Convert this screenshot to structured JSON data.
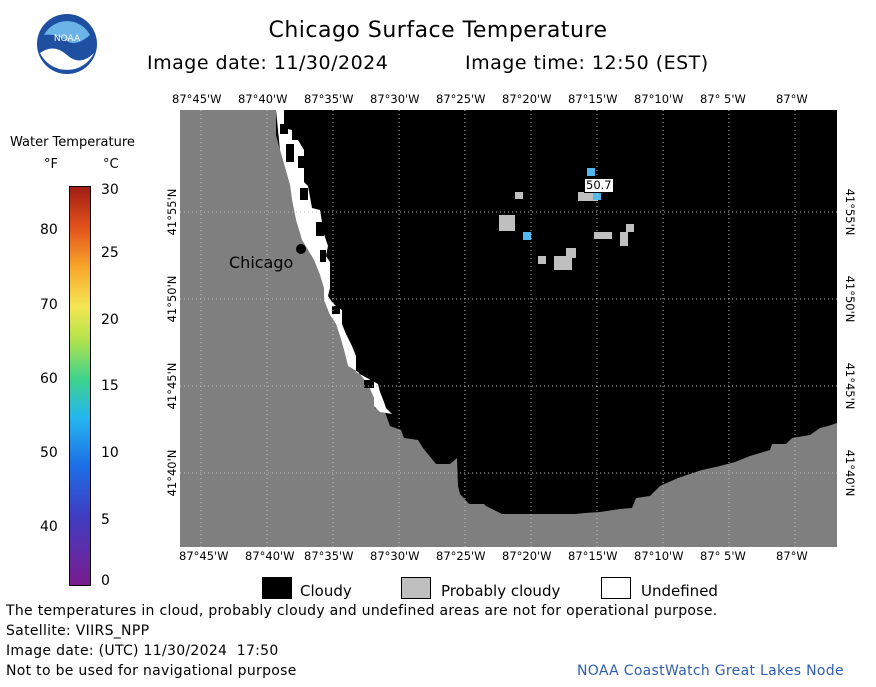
{
  "header": {
    "logo_text": "NOAA",
    "title": "Chicago Surface Temperature",
    "date_label": "Image date: 11/30/2024",
    "time_label": "Image time: 12:50 (EST)"
  },
  "colorbar": {
    "title": "Water Temperature",
    "unit_f": "°F",
    "unit_c": "°C",
    "f_ticks": [
      "80",
      "70",
      "60",
      "50",
      "40"
    ],
    "c_ticks": [
      "30",
      "25",
      "20",
      "15",
      "10",
      "5",
      "0"
    ]
  },
  "map": {
    "lon_ticks": [
      "87°45'W",
      "87°40'W",
      "87°35'W",
      "87°30'W",
      "87°25'W",
      "87°20'W",
      "87°15'W",
      "87°10'W",
      "87° 5'W",
      "87°W"
    ],
    "lat_ticks": [
      "41°55'N",
      "41°50'N",
      "41°45'N",
      "41°40'N"
    ],
    "city_label": "Chicago",
    "temp_annotation": "50.7",
    "colors": {
      "land": "#7f7f7f",
      "cloudy": "#000000",
      "probably_cloudy": "#bfbfbf",
      "undefined": "#ffffff",
      "water_sample": "#4fb8f0"
    }
  },
  "legend": {
    "cloudy": "Cloudy",
    "probably_cloudy": "Probably cloudy",
    "undefined": "Undefined"
  },
  "footer": {
    "disclaimer": "The temperatures in cloud, probably cloudy and undefined areas are not for operational purpose.",
    "satellite": "Satellite: VIIRS_NPP",
    "utc_date": "Image date: (UTC) 11/30/2024  17:50",
    "nav_warning": "Not to be used for navigational purpose",
    "credit": "NOAA CoastWatch Great Lakes Node"
  }
}
